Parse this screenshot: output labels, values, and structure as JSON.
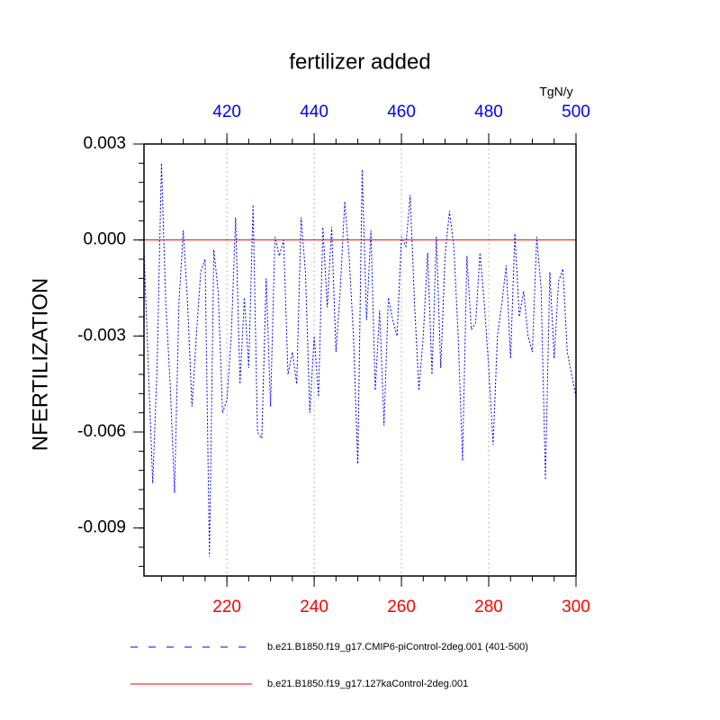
{
  "chart_data": {
    "type": "line",
    "title": "fertilizer added",
    "ylabel": "NFERTILIZATION",
    "x2label": "TgN/y",
    "xlim": [
      201,
      300
    ],
    "xticks": [
      220,
      240,
      260,
      280,
      300
    ],
    "xtick_color": "#ff0000",
    "x2lim": [
      401,
      500
    ],
    "x2ticks": [
      420,
      440,
      460,
      480,
      500
    ],
    "x2tick_color": "#0000ff",
    "ylim": [
      -0.0105,
      0.003
    ],
    "yticks": [
      0.003,
      {
        "value": 0,
        "label": "0.000"
      },
      -0.003,
      -0.006,
      -0.009
    ],
    "grid": true,
    "series": [
      {
        "name": "b.e21.B1850.f19_g17.CMIP6-piControl-2deg.001 (401-500)",
        "color": "#0000ff",
        "dash": true,
        "axis": "x2",
        "x": [
          401,
          402,
          403,
          404,
          405,
          406,
          407,
          408,
          409,
          410,
          411,
          412,
          413,
          414,
          415,
          416,
          417,
          418,
          419,
          420,
          421,
          422,
          423,
          424,
          425,
          426,
          427,
          428,
          429,
          430,
          431,
          432,
          433,
          434,
          435,
          436,
          437,
          438,
          439,
          440,
          441,
          442,
          443,
          444,
          445,
          446,
          447,
          448,
          449,
          450,
          451,
          452,
          453,
          454,
          455,
          456,
          457,
          458,
          459,
          460,
          461,
          462,
          463,
          464,
          465,
          466,
          467,
          468,
          469,
          470,
          471,
          472,
          473,
          474,
          475,
          476,
          477,
          478,
          479,
          480,
          481,
          482,
          483,
          484,
          485,
          486,
          487,
          488,
          489,
          490,
          491,
          492,
          493,
          494,
          495,
          496,
          497,
          498,
          499,
          500
        ],
        "values": [
          -0.0003,
          -0.004,
          -0.0076,
          -0.004,
          0.0024,
          -0.002,
          -0.0045,
          -0.0079,
          -0.002,
          0.0003,
          -0.002,
          -0.0052,
          -0.003,
          -0.001,
          -0.0006,
          -0.0099,
          -0.0003,
          -0.0016,
          -0.0054,
          -0.005,
          -0.003,
          0.0007,
          -0.0045,
          -0.0018,
          -0.004,
          0.0011,
          -0.006,
          -0.0062,
          -0.0012,
          -0.0052,
          0.0001,
          -0.0005,
          0.0,
          -0.0042,
          -0.0035,
          -0.0045,
          0.0007,
          -0.001,
          -0.0054,
          -0.003,
          -0.0049,
          0.0004,
          -0.0021,
          0.0004,
          -0.0035,
          -0.0015,
          0.0012,
          -0.0005,
          -0.003,
          -0.007,
          0.0022,
          -0.0025,
          0.0003,
          -0.0047,
          -0.0022,
          -0.0058,
          -0.0018,
          -0.0025,
          -0.003,
          0.0001,
          -0.0002,
          0.0014,
          -0.002,
          -0.0047,
          -0.003,
          -0.0004,
          -0.0042,
          0.0001,
          -0.004,
          -0.0005,
          0.0009,
          -0.0002,
          -0.003,
          -0.0069,
          -0.0005,
          -0.0028,
          -0.0026,
          -0.0004,
          -0.002,
          -0.004,
          -0.0064,
          -0.003,
          -0.002,
          -0.0008,
          -0.0037,
          0.0002,
          -0.0024,
          -0.0016,
          -0.003,
          -0.0035,
          0.0001,
          -0.0015,
          -0.0075,
          -0.001,
          -0.0037,
          -0.0013,
          -0.0009,
          -0.0035,
          -0.0042,
          -0.0049
        ]
      },
      {
        "name": "b.e21.B1850.f19_g17.127kaControl-2deg.001",
        "color": "#ff0000",
        "dash": false,
        "x": [
          201,
          300
        ],
        "values": [
          0,
          0
        ]
      }
    ]
  }
}
